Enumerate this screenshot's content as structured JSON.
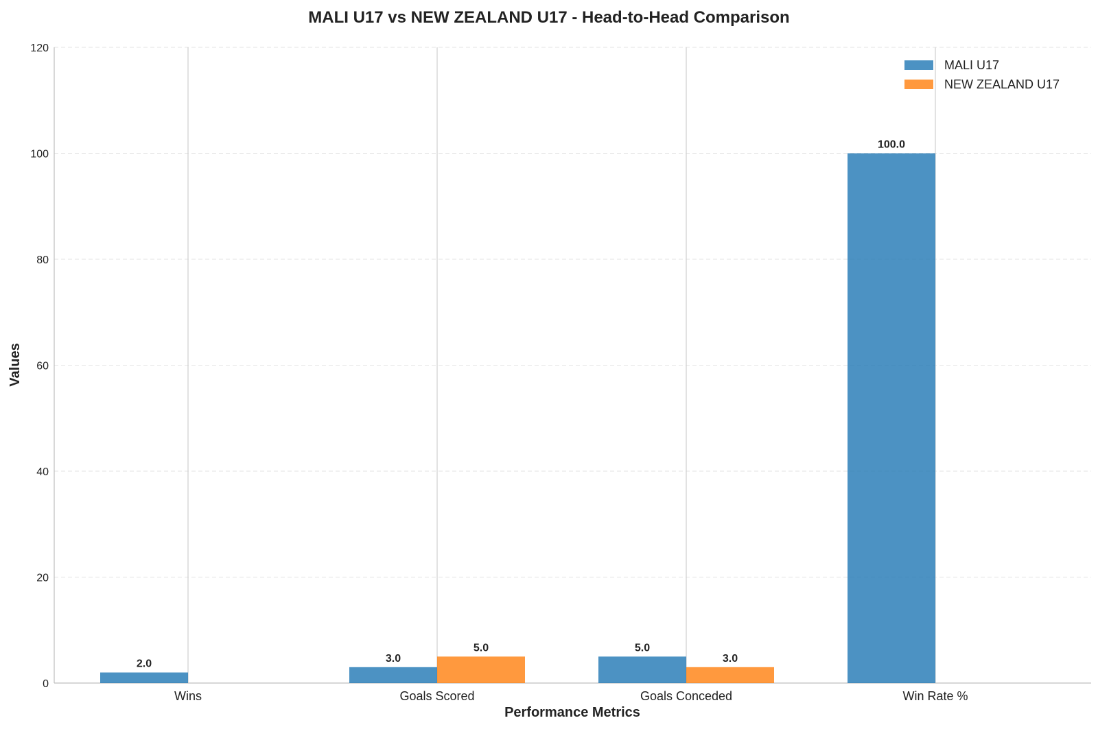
{
  "chart_data": {
    "type": "bar",
    "title": "MALI U17 vs NEW ZEALAND U17 - Head-to-Head Comparison",
    "xlabel": "Performance Metrics",
    "ylabel": "Values",
    "categories": [
      "Wins",
      "Goals Scored",
      "Goals Conceded",
      "Win Rate %"
    ],
    "series": [
      {
        "name": "MALI U17",
        "color": "#1f77b4",
        "values": [
          2.0,
          3.0,
          5.0,
          100.0
        ],
        "labels": [
          "2.0",
          "3.0",
          "5.0",
          "100.0"
        ]
      },
      {
        "name": "NEW ZEALAND U17",
        "color": "#ff7f0e",
        "values": [
          0.0,
          5.0,
          3.0,
          0.0
        ],
        "labels": [
          "",
          "5.0",
          "3.0",
          ""
        ]
      }
    ],
    "ylim": [
      0,
      120
    ],
    "yticks": [
      0,
      20,
      40,
      60,
      80,
      100,
      120
    ],
    "ytick_labels": [
      "0",
      "20",
      "40",
      "60",
      "80",
      "100",
      "120"
    ],
    "grid": true,
    "legend_position": "top-right"
  }
}
